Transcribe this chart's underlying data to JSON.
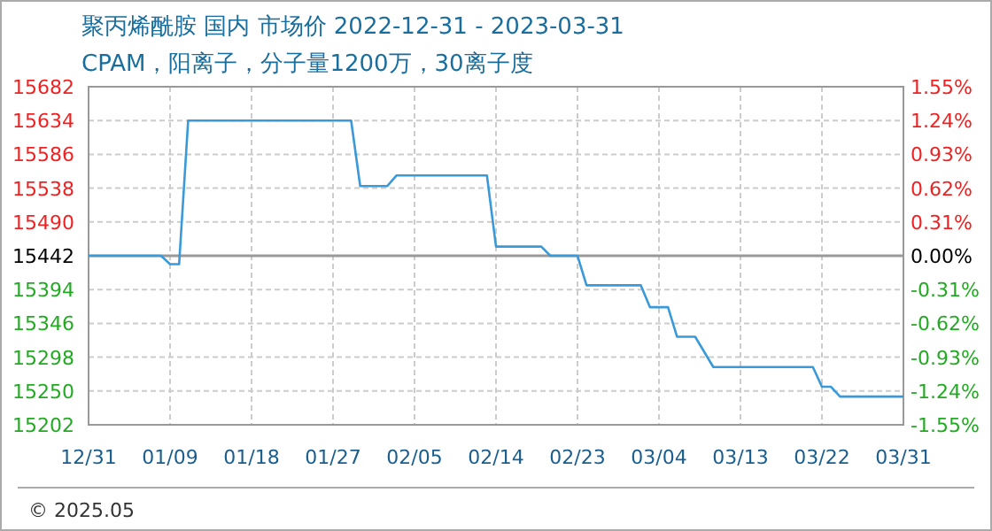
{
  "chart_data": {
    "type": "line",
    "title": "聚丙烯酰胺 国内 市场价 2022-12-31 - 2023-03-31",
    "subtitle": "CPAM，阳离子，分子量1200万，30离子度",
    "x": [
      "2022-12-31",
      "2023-01-08",
      "2023-01-09",
      "2023-01-10",
      "2023-01-11",
      "2023-01-29",
      "2023-01-30",
      "2023-02-02",
      "2023-02-03",
      "2023-02-13",
      "2023-02-14",
      "2023-02-19",
      "2023-02-20",
      "2023-02-23",
      "2023-02-24",
      "2023-03-02",
      "2023-03-03",
      "2023-03-05",
      "2023-03-06",
      "2023-03-08",
      "2023-03-10",
      "2023-03-21",
      "2023-03-22",
      "2023-03-23",
      "2023-03-24",
      "2023-03-31"
    ],
    "series": [
      {
        "color": "#3a9ad9",
        "values": [
          15442,
          15442,
          15430,
          15430,
          15634,
          15634,
          15541,
          15541,
          15556,
          15556,
          15455,
          15455,
          15442,
          15442,
          15400,
          15400,
          15369,
          15369,
          15327,
          15327,
          15284,
          15284,
          15256,
          15256,
          15242,
          15242
        ]
      }
    ],
    "xlim": [
      "2022-12-31",
      "2023-03-31"
    ],
    "xticks": [
      {
        "value": "2022-12-31",
        "label": "12/31"
      },
      {
        "value": "2023-01-09",
        "label": "01/09"
      },
      {
        "value": "2023-01-18",
        "label": "01/18"
      },
      {
        "value": "2023-01-27",
        "label": "01/27"
      },
      {
        "value": "2023-02-05",
        "label": "02/05"
      },
      {
        "value": "2023-02-14",
        "label": "02/14"
      },
      {
        "value": "2023-02-23",
        "label": "02/23"
      },
      {
        "value": "2023-03-04",
        "label": "03/04"
      },
      {
        "value": "2023-03-13",
        "label": "03/13"
      },
      {
        "value": "2023-03-22",
        "label": "03/22"
      },
      {
        "value": "2023-03-31",
        "label": "03/31"
      }
    ],
    "ylim": [
      15202,
      15682
    ],
    "yticks": [
      15202,
      15250,
      15298,
      15346,
      15394,
      15442,
      15490,
      15538,
      15586,
      15634,
      15682
    ],
    "y2lim": [
      -1.55,
      1.55
    ],
    "y2ticks": [
      {
        "value": -1.55,
        "label": "-1.55%"
      },
      {
        "value": -1.24,
        "label": "-1.24%"
      },
      {
        "value": -0.93,
        "label": "-0.93%"
      },
      {
        "value": -0.62,
        "label": "-0.62%"
      },
      {
        "value": -0.31,
        "label": "-0.31%"
      },
      {
        "value": 0,
        "label": "0.00%"
      },
      {
        "value": 0.31,
        "label": "0.31%"
      },
      {
        "value": 0.62,
        "label": "0.62%"
      },
      {
        "value": 0.93,
        "label": "0.93%"
      },
      {
        "value": 1.24,
        "label": "1.24%"
      },
      {
        "value": 1.55,
        "label": "1.55%"
      }
    ],
    "ref_lines": [
      {
        "axis": "y",
        "value": 15442,
        "color": "#999999"
      }
    ],
    "grid": true,
    "line_style": "solid",
    "marker": "none",
    "annotations": [
      "© 2025.05"
    ]
  }
}
